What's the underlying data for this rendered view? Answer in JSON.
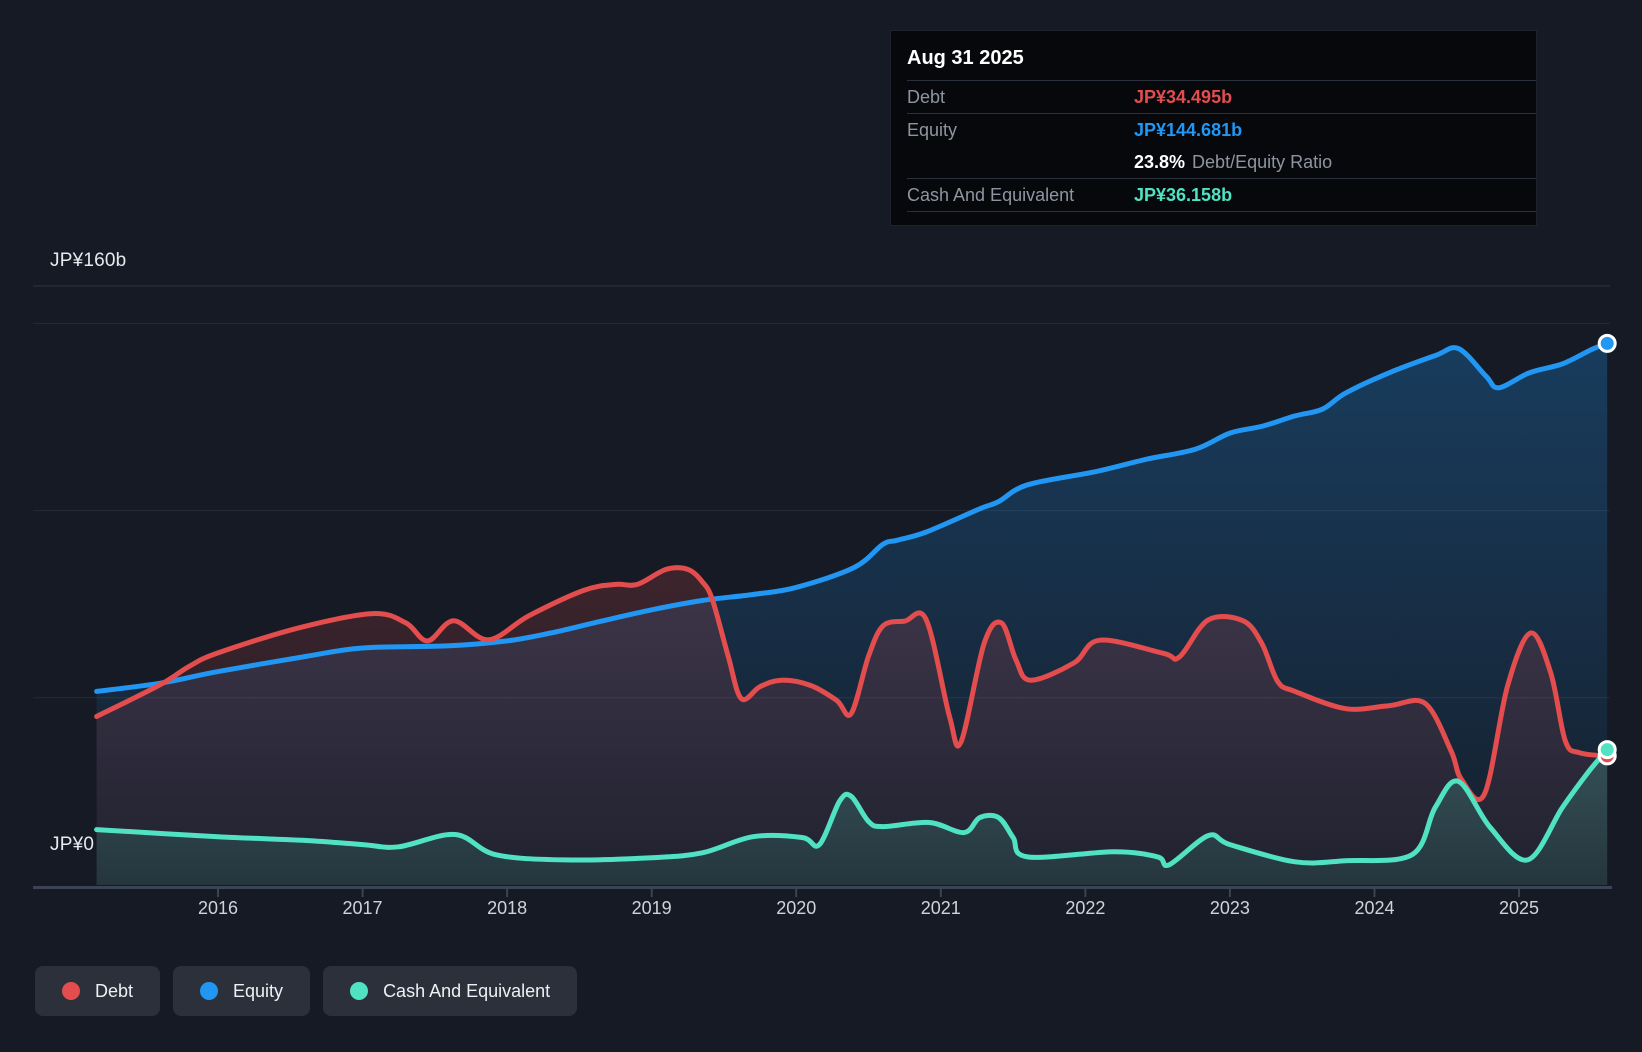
{
  "colors": {
    "background": "#151a24",
    "debt": "#e34d4d",
    "equity": "#2196f3",
    "cash": "#50e2c2",
    "grid": "#242b38",
    "grid_top": "#2d3443",
    "axis": "#3c4353",
    "marker_stroke": "#ffffff"
  },
  "tooltip": {
    "title": "Aug 31 2025",
    "rows": [
      {
        "label": "Debt",
        "value": "JP¥34.495b",
        "color_key": "debt"
      },
      {
        "label": "Equity",
        "value": "JP¥144.681b",
        "color_key": "equity"
      },
      {
        "label": "",
        "value_bold": "23.8%",
        "value_rest": "Debt/Equity Ratio"
      },
      {
        "label": "Cash And Equivalent",
        "value": "JP¥36.158b",
        "color_key": "cash"
      }
    ]
  },
  "legend": {
    "items": [
      {
        "label": "Debt",
        "color_key": "debt"
      },
      {
        "label": "Equity",
        "color_key": "equity"
      },
      {
        "label": "Cash And Equivalent",
        "color_key": "cash"
      }
    ]
  },
  "axes": {
    "y_top_label": "JP¥160b",
    "y_zero_label": "JP¥0",
    "x_ticks": [
      2016,
      2017,
      2018,
      2019,
      2020,
      2021,
      2022,
      2023,
      2024,
      2025
    ],
    "y_gridline_values_b": [
      160,
      150,
      100,
      50
    ],
    "y_max_b": 160
  },
  "chart_data": {
    "type": "area",
    "title": "Debt to Equity History and Analysis",
    "x_unit": "year",
    "x_range": [
      2015.16,
      2025.61
    ],
    "ylabel": "JP¥ billions",
    "ylim": [
      0,
      160
    ],
    "legend_position": "bottom-left",
    "grid": true,
    "series": [
      {
        "name": "Equity",
        "color_key": "equity",
        "end_value_label": "JP¥144.681b",
        "points": [
          [
            2015.16,
            51.7
          ],
          [
            2015.6,
            53.9
          ],
          [
            2016.0,
            57.0
          ],
          [
            2016.6,
            61.0
          ],
          [
            2017.0,
            63.3
          ],
          [
            2017.6,
            63.9
          ],
          [
            2018.0,
            65.2
          ],
          [
            2018.3,
            67.3
          ],
          [
            2018.6,
            70.0
          ],
          [
            2019.0,
            73.5
          ],
          [
            2019.35,
            76.0
          ],
          [
            2019.7,
            77.6
          ],
          [
            2020.0,
            79.5
          ],
          [
            2020.4,
            84.8
          ],
          [
            2020.6,
            91.0
          ],
          [
            2020.7,
            92.1
          ],
          [
            2020.9,
            94.3
          ],
          [
            2021.27,
            100.5
          ],
          [
            2021.4,
            102.4
          ],
          [
            2021.6,
            106.9
          ],
          [
            2022.07,
            110.4
          ],
          [
            2022.42,
            113.7
          ],
          [
            2022.76,
            116.4
          ],
          [
            2023.0,
            120.7
          ],
          [
            2023.23,
            122.6
          ],
          [
            2023.45,
            125.3
          ],
          [
            2023.64,
            127.1
          ],
          [
            2023.8,
            131.4
          ],
          [
            2024.1,
            136.8
          ],
          [
            2024.42,
            141.4
          ],
          [
            2024.58,
            143.3
          ],
          [
            2024.77,
            136.0
          ],
          [
            2024.86,
            132.8
          ],
          [
            2025.07,
            136.8
          ],
          [
            2025.3,
            139.2
          ],
          [
            2025.5,
            143.0
          ],
          [
            2025.61,
            144.681
          ]
        ]
      },
      {
        "name": "Debt",
        "color_key": "debt",
        "end_value_label": "JP¥34.495b",
        "points": [
          [
            2015.16,
            45.0
          ],
          [
            2015.6,
            53.5
          ],
          [
            2015.8,
            58.4
          ],
          [
            2016.0,
            62.0
          ],
          [
            2016.56,
            68.7
          ],
          [
            2017.07,
            72.5
          ],
          [
            2017.3,
            70.0
          ],
          [
            2017.45,
            65.2
          ],
          [
            2017.63,
            70.6
          ],
          [
            2017.87,
            65.5
          ],
          [
            2018.15,
            71.9
          ],
          [
            2018.53,
            78.7
          ],
          [
            2018.75,
            80.3
          ],
          [
            2018.9,
            80.3
          ],
          [
            2019.1,
            84.3
          ],
          [
            2019.25,
            84.3
          ],
          [
            2019.35,
            81.0
          ],
          [
            2019.42,
            76.2
          ],
          [
            2019.53,
            61.0
          ],
          [
            2019.62,
            49.8
          ],
          [
            2019.75,
            53.0
          ],
          [
            2019.9,
            54.7
          ],
          [
            2020.1,
            53.3
          ],
          [
            2020.28,
            49.3
          ],
          [
            2020.38,
            45.8
          ],
          [
            2020.5,
            61.1
          ],
          [
            2020.6,
            69.2
          ],
          [
            2020.75,
            70.5
          ],
          [
            2020.9,
            70.8
          ],
          [
            2021.06,
            45.0
          ],
          [
            2021.14,
            38.2
          ],
          [
            2021.3,
            64.6
          ],
          [
            2021.42,
            70.0
          ],
          [
            2021.52,
            60.1
          ],
          [
            2021.62,
            54.7
          ],
          [
            2021.92,
            59.3
          ],
          [
            2022.1,
            65.4
          ],
          [
            2022.54,
            61.9
          ],
          [
            2022.65,
            60.9
          ],
          [
            2022.85,
            70.8
          ],
          [
            2023.09,
            70.6
          ],
          [
            2023.22,
            64.6
          ],
          [
            2023.33,
            54.4
          ],
          [
            2023.45,
            51.7
          ],
          [
            2023.8,
            47.1
          ],
          [
            2024.1,
            47.9
          ],
          [
            2024.35,
            48.5
          ],
          [
            2024.53,
            35.8
          ],
          [
            2024.6,
            28.3
          ],
          [
            2024.76,
            24.2
          ],
          [
            2024.92,
            53.1
          ],
          [
            2025.08,
            67.3
          ],
          [
            2025.22,
            56.6
          ],
          [
            2025.32,
            38.5
          ],
          [
            2025.42,
            35.3
          ],
          [
            2025.61,
            34.495
          ]
        ]
      },
      {
        "name": "Cash And Equivalent",
        "color_key": "cash",
        "end_value_label": "JP¥36.158b",
        "points": [
          [
            2015.16,
            14.8
          ],
          [
            2016.0,
            12.9
          ],
          [
            2016.6,
            11.9
          ],
          [
            2017.0,
            10.8
          ],
          [
            2017.25,
            10.2
          ],
          [
            2017.64,
            13.5
          ],
          [
            2017.92,
            8.1
          ],
          [
            2018.4,
            6.7
          ],
          [
            2019.0,
            7.3
          ],
          [
            2019.35,
            8.6
          ],
          [
            2019.7,
            12.9
          ],
          [
            2020.04,
            12.7
          ],
          [
            2020.16,
            10.8
          ],
          [
            2020.3,
            22.4
          ],
          [
            2020.38,
            23.7
          ],
          [
            2020.5,
            17.0
          ],
          [
            2020.6,
            15.6
          ],
          [
            2020.92,
            16.7
          ],
          [
            2021.16,
            14.0
          ],
          [
            2021.27,
            18.0
          ],
          [
            2021.4,
            18.0
          ],
          [
            2021.5,
            12.7
          ],
          [
            2021.6,
            7.5
          ],
          [
            2022.2,
            8.9
          ],
          [
            2022.5,
            7.5
          ],
          [
            2022.58,
            5.4
          ],
          [
            2022.85,
            13.2
          ],
          [
            2023.0,
            10.8
          ],
          [
            2023.45,
            6.2
          ],
          [
            2023.8,
            6.5
          ],
          [
            2024.26,
            8.1
          ],
          [
            2024.42,
            20.7
          ],
          [
            2024.58,
            27.7
          ],
          [
            2024.8,
            15.4
          ],
          [
            2025.06,
            6.7
          ],
          [
            2025.3,
            20.7
          ],
          [
            2025.48,
            30.2
          ],
          [
            2025.61,
            36.158
          ]
        ]
      }
    ]
  }
}
